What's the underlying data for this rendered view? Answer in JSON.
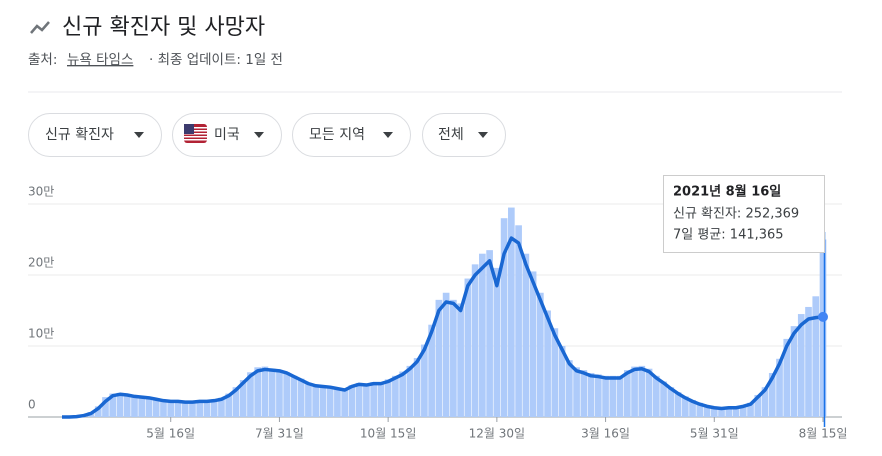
{
  "header": {
    "title": "신규 확진자 및 사망자",
    "source_label": "출처:",
    "source": "뉴욕 타임스",
    "updated": "· 최종 업데이트: 1일 전"
  },
  "filters": [
    "신규 확진자",
    "미국",
    "모든 지역",
    "전체"
  ],
  "tooltip": {
    "title": "2021년 8월 16일",
    "lines": [
      "신규 확진자: 252,369",
      "7일 평균: 141,365"
    ]
  },
  "chart_data": {
    "type": "bar",
    "categories": [
      null,
      null,
      null,
      null,
      null,
      null,
      null,
      null,
      null,
      null,
      null,
      null,
      null,
      null,
      null,
      "5월 16일",
      null,
      null,
      null,
      null,
      null,
      null,
      null,
      null,
      null,
      null,
      null,
      null,
      null,
      null,
      "7월 31일",
      null,
      null,
      null,
      null,
      null,
      null,
      null,
      null,
      null,
      null,
      null,
      null,
      null,
      null,
      "10월 15일",
      null,
      null,
      null,
      null,
      null,
      null,
      null,
      null,
      null,
      null,
      null,
      null,
      null,
      null,
      "12월 30일",
      null,
      null,
      null,
      null,
      null,
      null,
      null,
      null,
      null,
      null,
      null,
      null,
      null,
      null,
      "3월 16일",
      null,
      null,
      null,
      null,
      null,
      null,
      null,
      null,
      null,
      null,
      null,
      null,
      null,
      null,
      "5월 31일",
      null,
      null,
      null,
      null,
      null,
      null,
      null,
      null,
      null,
      null,
      null,
      null,
      null,
      null,
      "8월 15일"
    ],
    "series": [
      {
        "type": "bar",
        "color": "#aecbfa",
        "values": [
          0,
          0,
          1000,
          3000,
          7000,
          15000,
          28000,
          33000,
          34000,
          32000,
          30000,
          29000,
          28000,
          26000,
          24000,
          23000,
          23000,
          22000,
          22000,
          23000,
          23000,
          25000,
          27000,
          33000,
          42000,
          52000,
          63000,
          70000,
          71000,
          68000,
          66000,
          63000,
          58000,
          54000,
          48000,
          45000,
          44000,
          43000,
          41000,
          39000,
          45000,
          48000,
          47000,
          49000,
          49000,
          53000,
          58000,
          64000,
          72000,
          83000,
          102000,
          130000,
          165000,
          175000,
          165000,
          160000,
          195000,
          215000,
          230000,
          235000,
          210000,
          280000,
          295000,
          270000,
          230000,
          205000,
          175000,
          150000,
          125000,
          100000,
          80000,
          70000,
          66000,
          62000,
          60000,
          58000,
          58000,
          58000,
          66000,
          71000,
          72000,
          68000,
          58000,
          50000,
          42000,
          35000,
          29000,
          24000,
          20000,
          16000,
          14000,
          13000,
          14000,
          14000,
          16000,
          20000,
          31000,
          42000,
          62000,
          82000,
          110000,
          128000,
          145000,
          155000,
          170000,
          250000
        ]
      },
      {
        "type": "line",
        "color": "#1967d2",
        "values": [
          0,
          0,
          500,
          2000,
          5000,
          12000,
          22000,
          30000,
          32000,
          31000,
          29000,
          28000,
          27000,
          25000,
          23000,
          22000,
          22000,
          21000,
          21000,
          22000,
          22000,
          23000,
          25000,
          30000,
          38000,
          48000,
          58000,
          65000,
          67000,
          66000,
          65000,
          62000,
          57000,
          52000,
          47000,
          44000,
          43000,
          42000,
          40000,
          38000,
          43000,
          46000,
          45000,
          47000,
          47000,
          50000,
          55000,
          60000,
          68000,
          78000,
          95000,
          120000,
          150000,
          162000,
          160000,
          150000,
          185000,
          200000,
          210000,
          220000,
          185000,
          230000,
          252000,
          245000,
          215000,
          190000,
          165000,
          140000,
          115000,
          95000,
          75000,
          65000,
          62000,
          58000,
          57000,
          55000,
          55000,
          55000,
          62000,
          67000,
          68000,
          64000,
          55000,
          48000,
          40000,
          33000,
          27000,
          22000,
          18000,
          15000,
          13000,
          12000,
          13000,
          13000,
          15000,
          18000,
          28000,
          38000,
          55000,
          75000,
          100000,
          118000,
          130000,
          138000,
          140000,
          141000
        ]
      }
    ],
    "ylim": [
      0,
      300000
    ],
    "yticks": [
      0,
      {
        "value": 100000,
        "label": "10만"
      },
      {
        "value": 200000,
        "label": "20만"
      },
      {
        "value": 300000,
        "label": "30만"
      }
    ],
    "grid": true
  }
}
